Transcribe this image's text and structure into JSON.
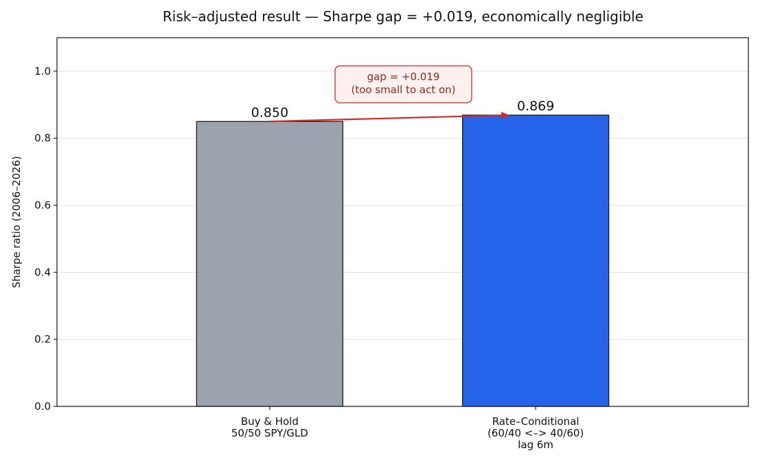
{
  "chart_data": {
    "type": "bar",
    "title": "Risk–adjusted result — Sharpe gap = +0.019, economically negligible",
    "xlabel": "",
    "ylabel": "Sharpe ratio (2006–2026)",
    "ylim": [
      0,
      1.1
    ],
    "yticks": [
      0.0,
      0.2,
      0.4,
      0.6,
      0.8,
      1.0
    ],
    "ytick_labels": [
      "0.0",
      "0.2",
      "0.4",
      "0.6",
      "0.8",
      "1.0"
    ],
    "grid": "horizontal",
    "categories": [
      [
        "Buy & Hold",
        "50/50 SPY/GLD"
      ],
      [
        "Rate–Conditional",
        "(60/40 <–> 40/60)",
        "lag 6m"
      ]
    ],
    "values": [
      0.85,
      0.869
    ],
    "value_labels": [
      "0.850",
      "0.869"
    ],
    "colors": [
      "#9ca3ae",
      "#2563eb"
    ],
    "annotation": {
      "lines": [
        "gap = +0.019",
        "(too small to act on)"
      ],
      "arrow_from": 0.85,
      "arrow_to": 0.869,
      "color": "#dc2626",
      "fill": "#fdf0ef"
    }
  }
}
